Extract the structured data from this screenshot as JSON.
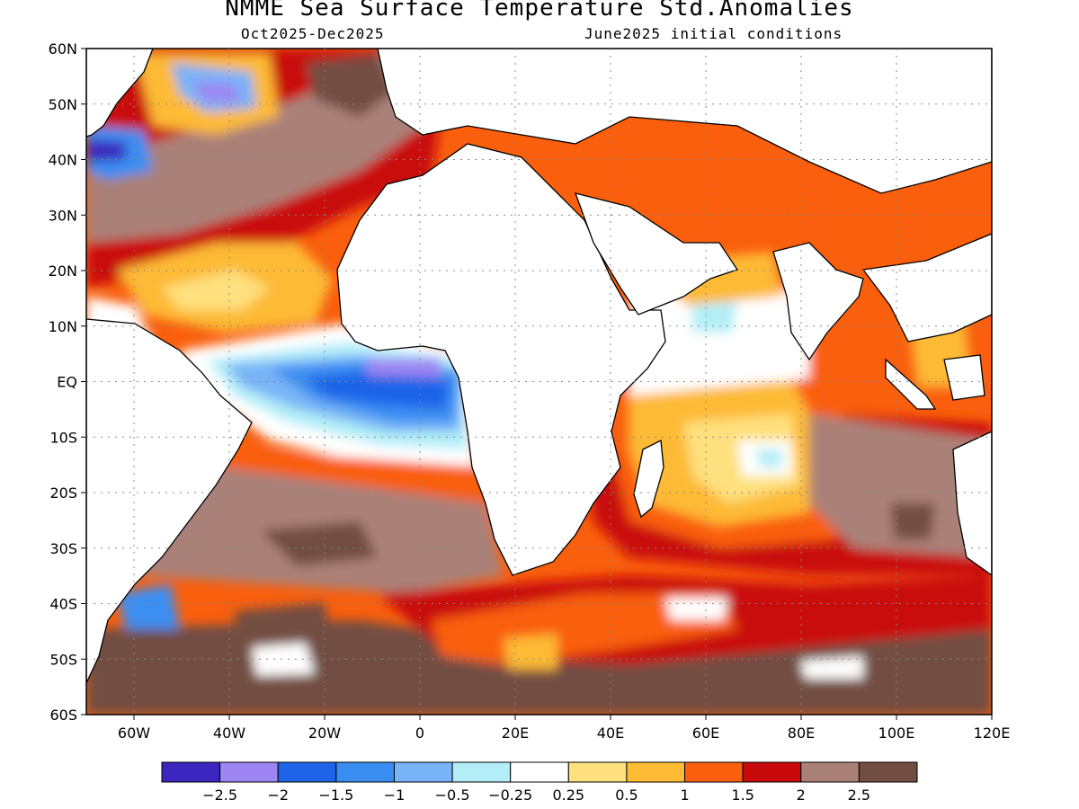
{
  "title": "NMME Sea Surface Temperature Std.Anomalies",
  "subtitle_period": "Oct2025-Dec2025",
  "subtitle_init": "June2025 initial conditions",
  "map": {
    "lon_range": [
      -70,
      120
    ],
    "lat_range": [
      -60,
      60
    ],
    "lat_ticks": [
      {
        "value": 60,
        "label": "60N"
      },
      {
        "value": 50,
        "label": "50N"
      },
      {
        "value": 40,
        "label": "40N"
      },
      {
        "value": 30,
        "label": "30N"
      },
      {
        "value": 20,
        "label": "20N"
      },
      {
        "value": 10,
        "label": "10N"
      },
      {
        "value": 0,
        "label": "EQ"
      },
      {
        "value": -10,
        "label": "10S"
      },
      {
        "value": -20,
        "label": "20S"
      },
      {
        "value": -30,
        "label": "30S"
      },
      {
        "value": -40,
        "label": "40S"
      },
      {
        "value": -50,
        "label": "50S"
      },
      {
        "value": -60,
        "label": "60S"
      }
    ],
    "lon_ticks": [
      {
        "value": -60,
        "label": "60W"
      },
      {
        "value": -40,
        "label": "40W"
      },
      {
        "value": -20,
        "label": "20W"
      },
      {
        "value": 0,
        "label": "0"
      },
      {
        "value": 20,
        "label": "20E"
      },
      {
        "value": 40,
        "label": "40E"
      },
      {
        "value": 60,
        "label": "60E"
      },
      {
        "value": 80,
        "label": "80E"
      },
      {
        "value": 100,
        "label": "100E"
      },
      {
        "value": 120,
        "label": "120E"
      }
    ]
  },
  "colorbar": {
    "colors": [
      "#3b26c0",
      "#9d86f3",
      "#1f64e8",
      "#3a8ef2",
      "#78b4f7",
      "#b3eef8",
      "#ffffff",
      "#fee07e",
      "#fdba35",
      "#f95f0d",
      "#c90a0a",
      "#aa8178",
      "#724d42"
    ],
    "labels": [
      "-2.5",
      "-2",
      "-1.5",
      "-1",
      "-0.5",
      "-0.25",
      "0.25",
      "0.5",
      "1",
      "1.5",
      "2",
      "2.5"
    ]
  },
  "regions": [
    {
      "name": "north-atlantic-warm-band",
      "color": "#c90a0a",
      "lon": [
        -70,
        -10
      ],
      "lat": [
        15,
        60
      ]
    },
    {
      "name": "north-atlantic-brown",
      "color": "#aa8178",
      "lon": [
        -60,
        -20
      ],
      "lat": [
        30,
        50
      ]
    },
    {
      "name": "subtropical-atlantic-orange",
      "color": "#f95f0d",
      "lon": [
        -70,
        -15
      ],
      "lat": [
        8,
        30
      ]
    },
    {
      "name": "subtropical-atlantic-yellow",
      "color": "#fdba35",
      "lon": [
        -50,
        -20
      ],
      "lat": [
        10,
        22
      ]
    },
    {
      "name": "equatorial-atlantic-cold",
      "color": "#3a8ef2",
      "lon": [
        -25,
        10
      ],
      "lat": [
        -8,
        3
      ]
    },
    {
      "name": "gulf-of-guinea-purple",
      "color": "#9d86f3",
      "lon": [
        -10,
        5
      ],
      "lat": [
        1,
        4
      ]
    },
    {
      "name": "south-atlantic-brown",
      "color": "#aa8178",
      "lon": [
        -60,
        20
      ],
      "lat": [
        -60,
        -20
      ]
    },
    {
      "name": "indian-ocean-yellow",
      "color": "#fdba35",
      "lon": [
        40,
        80
      ],
      "lat": [
        -30,
        -5
      ]
    },
    {
      "name": "southeast-indian-brown",
      "color": "#aa8178",
      "lon": [
        80,
        120
      ],
      "lat": [
        -40,
        -10
      ]
    },
    {
      "name": "southern-ocean-brown",
      "color": "#724d42",
      "lon": [
        -70,
        120
      ],
      "lat": [
        -60,
        -45
      ]
    }
  ]
}
